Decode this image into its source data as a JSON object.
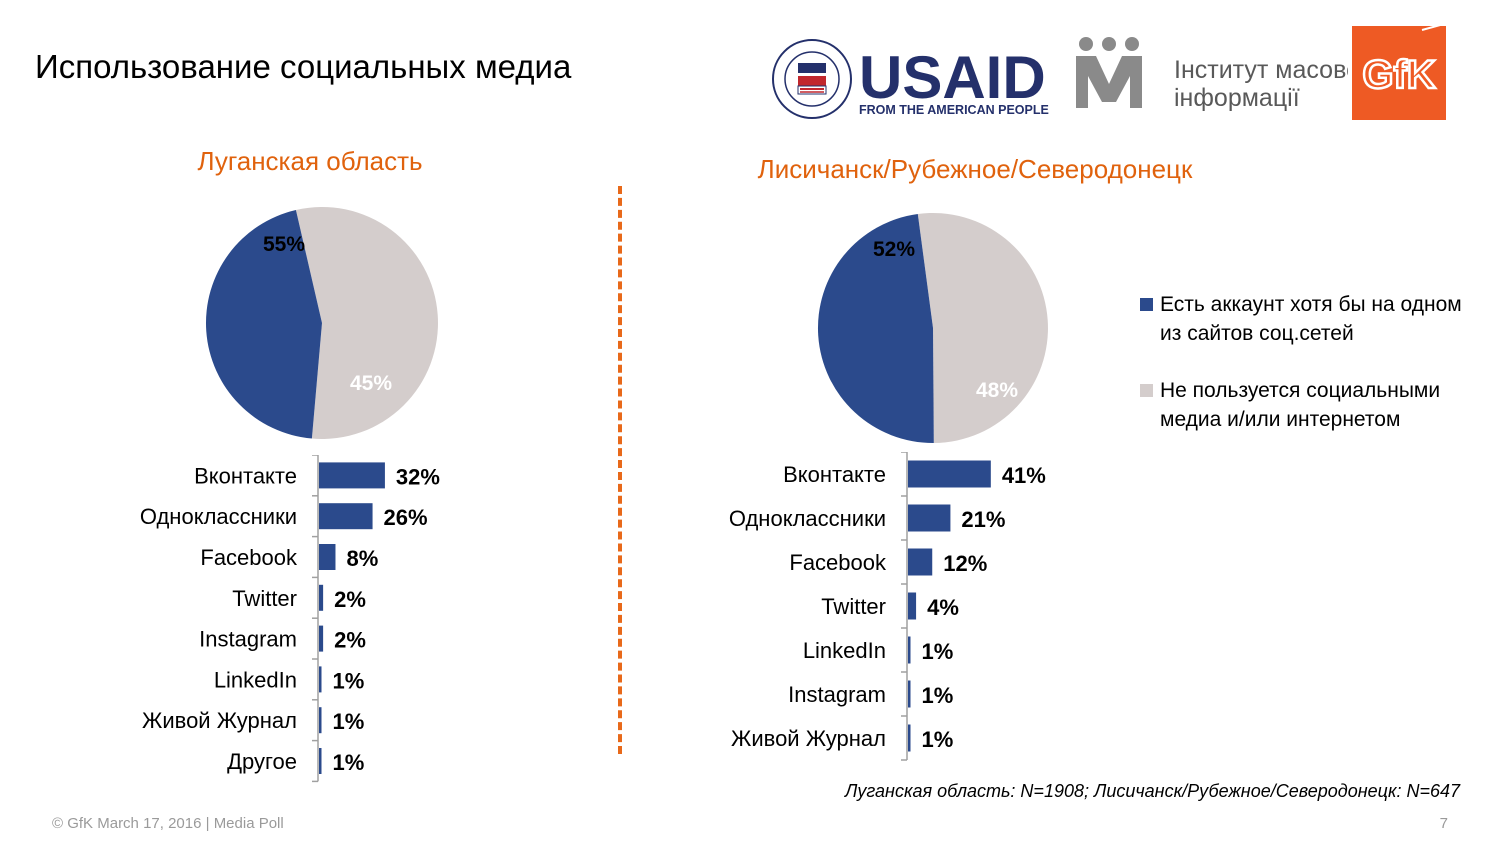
{
  "page": {
    "title": "Использование социальных медиа",
    "footnote": "Луганская область: N=1908; Лисичанск/Рубежное/Северодонецк: N=647",
    "copyright": "© GfK March 17, 2016 | Media Poll",
    "page_number": "7"
  },
  "logos": {
    "usaid_wordmark": "USAID",
    "usaid_tagline": "FROM THE AMERICAN PEOPLE",
    "usaid_seal_text": "UNITED STATES AGENCY INTERNATIONAL DEVELOPMENT",
    "imi_line1": "Інститут масової",
    "imi_line2": "інформації",
    "gfk": "GfK"
  },
  "colors": {
    "accent_orange": "#e0620d",
    "navy": "#2b4a8c",
    "light_gray": "#d4cdcc"
  },
  "legend": [
    {
      "label": "Есть аккаунт хотя бы на одном из сайтов соц.сетей",
      "color": "#2b4a8c"
    },
    {
      "label": "Не пользуется социальными медиа и/или интернетом",
      "color": "#d4cdcc"
    }
  ],
  "chart_data": [
    {
      "type": "pie",
      "title": "Луганская область",
      "slices": [
        {
          "name": "Есть аккаунт хотя бы на одном из сайтов соц.сетей",
          "value": 45,
          "label": "45%",
          "color": "#2b4a8c"
        },
        {
          "name": "Не пользуется социальными медиа и/или интернетом",
          "value": 55,
          "label": "55%",
          "color": "#d4cdcc"
        }
      ]
    },
    {
      "type": "bar",
      "orientation": "horizontal",
      "title": "Луганская область",
      "categories": [
        "Вконтакте",
        "Одноклассники",
        "Facebook",
        "Twitter",
        "Instagram",
        "LinkedIn",
        "Живой Журнал",
        "Другое"
      ],
      "values": [
        32,
        26,
        8,
        2,
        2,
        1,
        1,
        1
      ],
      "labels": [
        "32%",
        "26%",
        "8%",
        "2%",
        "2%",
        "1%",
        "1%",
        "1%"
      ],
      "color": "#2b4a8c"
    },
    {
      "type": "pie",
      "title": "Лисичанск/Рубежное/Северодонецк",
      "slices": [
        {
          "name": "Есть аккаунт хотя бы на одном из сайтов соц.сетей",
          "value": 48,
          "label": "48%",
          "color": "#2b4a8c"
        },
        {
          "name": "Не пользуется социальными медиа и/или интернетом",
          "value": 52,
          "label": "52%",
          "color": "#d4cdcc"
        }
      ]
    },
    {
      "type": "bar",
      "orientation": "horizontal",
      "title": "Лисичанск/Рубежное/Северодонецк",
      "categories": [
        "Вконтакте",
        "Одноклассники",
        "Facebook",
        "Twitter",
        "LinkedIn",
        "Instagram",
        "Живой Журнал"
      ],
      "values": [
        41,
        21,
        12,
        4,
        1,
        1,
        1
      ],
      "labels": [
        "41%",
        "21%",
        "12%",
        "4%",
        "1%",
        "1%",
        "1%"
      ],
      "color": "#2b4a8c"
    }
  ]
}
